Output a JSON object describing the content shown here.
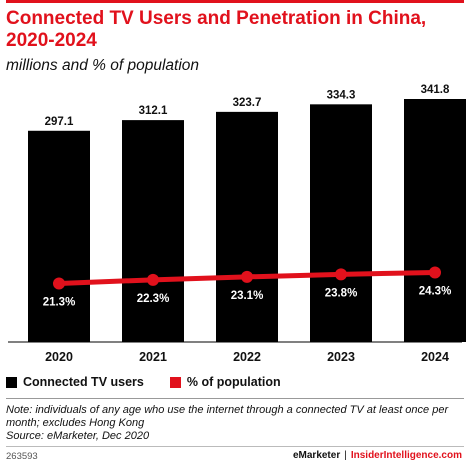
{
  "title": "Connected TV Users and Penetration in China, 2020-2024",
  "subtitle": "millions and % of population",
  "chart_data": {
    "type": "bar",
    "categories": [
      "2020",
      "2021",
      "2022",
      "2023",
      "2024"
    ],
    "series": [
      {
        "name": "Connected TV users",
        "type": "bar",
        "values": [
          297.1,
          312.1,
          323.7,
          334.3,
          341.8
        ],
        "labels": [
          "297.1",
          "312.1",
          "323.7",
          "334.3",
          "341.8"
        ],
        "color": "#000000"
      },
      {
        "name": "% of population",
        "type": "line",
        "values": [
          21.3,
          22.3,
          23.1,
          23.8,
          24.3
        ],
        "labels": [
          "21.3%",
          "22.3%",
          "23.1%",
          "23.8%",
          "24.3%"
        ],
        "color": "#e1111c"
      }
    ]
  },
  "legend": {
    "bars": "Connected TV users",
    "line": "% of population"
  },
  "note": "Note: individuals of any age who use the internet through a connected TV at least once per month; excludes Hong Kong",
  "source": "Source: eMarketer, Dec 2020",
  "footer": {
    "chart_id": "263593",
    "brand1": "eMarketer",
    "separator": "|",
    "brand2": "InsiderIntelligence.com"
  },
  "colors": {
    "accent": "#e1111c",
    "bar": "#000000"
  }
}
